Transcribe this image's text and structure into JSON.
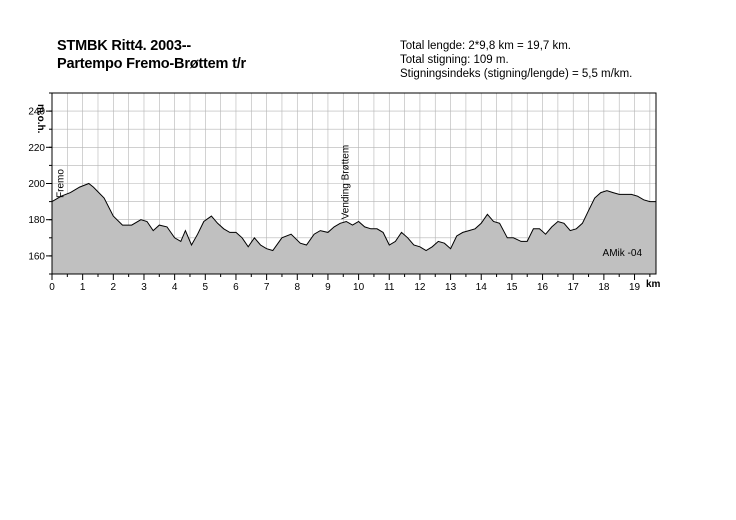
{
  "header": {
    "title_line1": "STMBK Ritt4. 2003--",
    "title_line2": "Partempo Fremo-Brøttem t/r",
    "info": [
      "Total lengde: 2*9,8 km = 19,7 km.",
      "Total stigning:  109 m.",
      "Stigningsindeks (stigning/lengde) = 5,5 m/km."
    ]
  },
  "chart_data": {
    "type": "area",
    "ylabel": "m.o.h.",
    "xlabel": "km",
    "xlim": [
      0,
      19.7
    ],
    "ylim": [
      150,
      250
    ],
    "xticks": [
      "0",
      "1",
      "2",
      "3",
      "4",
      "5",
      "6",
      "7",
      "8",
      "9",
      "10",
      "11",
      "12",
      "13",
      "14",
      "15",
      "16",
      "17",
      "18",
      "19"
    ],
    "yticks": [
      "160",
      "180",
      "200",
      "220",
      "240"
    ],
    "grid": true,
    "fill_color": "#c0c0c0",
    "annotations": [
      {
        "text": "Fremo",
        "x": 0.25,
        "y": 192
      },
      {
        "text": "Vending Brøttem",
        "x": 9.8,
        "y": 178
      },
      {
        "text": "AMik -04",
        "x": 18.6,
        "y": 160
      }
    ],
    "x": [
      0,
      0.3,
      0.6,
      0.9,
      1.2,
      1.35,
      1.7,
      2.0,
      2.3,
      2.6,
      2.9,
      3.1,
      3.3,
      3.5,
      3.75,
      4.0,
      4.2,
      4.35,
      4.55,
      4.75,
      4.95,
      5.2,
      5.4,
      5.6,
      5.8,
      6.0,
      6.2,
      6.4,
      6.6,
      6.8,
      7.0,
      7.2,
      7.5,
      7.8,
      8.1,
      8.3,
      8.55,
      8.75,
      9.0,
      9.2,
      9.4,
      9.6,
      9.8,
      10.0,
      10.2,
      10.4,
      10.6,
      10.8,
      11.0,
      11.2,
      11.4,
      11.6,
      11.8,
      12.0,
      12.2,
      12.4,
      12.6,
      12.8,
      13.0,
      13.2,
      13.4,
      13.6,
      13.8,
      14.0,
      14.2,
      14.4,
      14.6,
      14.85,
      15.05,
      15.3,
      15.5,
      15.7,
      15.9,
      16.1,
      16.3,
      16.5,
      16.7,
      16.9,
      17.1,
      17.3,
      17.5,
      17.7,
      17.9,
      18.1,
      18.3,
      18.5,
      18.7,
      18.9,
      19.1,
      19.3,
      19.5,
      19.7
    ],
    "y": [
      190,
      193,
      195,
      198,
      200,
      198,
      192,
      182,
      177,
      177,
      180,
      179,
      174,
      177,
      176,
      170,
      168,
      174,
      166,
      172,
      179,
      182,
      178,
      175,
      173,
      173,
      170,
      165,
      170,
      166,
      164,
      163,
      170,
      172,
      167,
      166,
      172,
      174,
      173,
      176,
      178,
      179,
      177,
      179,
      176,
      175,
      175,
      173,
      166,
      168,
      173,
      170,
      166,
      165,
      163,
      165,
      168,
      167,
      164,
      171,
      173,
      174,
      175,
      178,
      183,
      179,
      178,
      170,
      170,
      168,
      168,
      175,
      175,
      172,
      176,
      179,
      178,
      174,
      175,
      178,
      185,
      192,
      195,
      196,
      195,
      194,
      194,
      194,
      193,
      191,
      190,
      190
    ]
  }
}
